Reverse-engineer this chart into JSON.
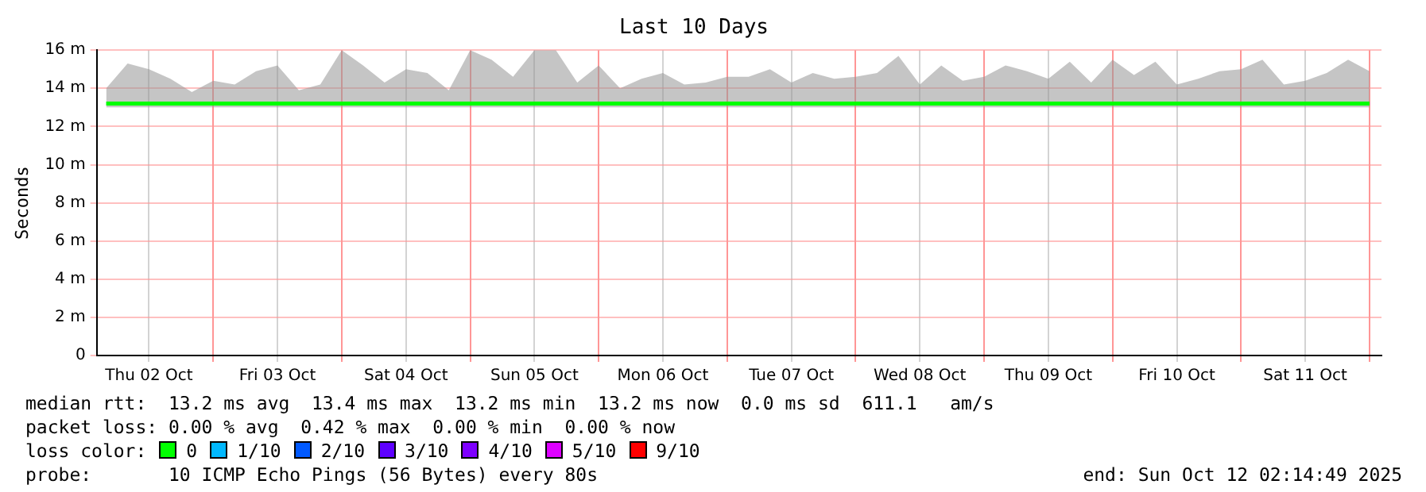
{
  "chart_data": {
    "type": "line",
    "title": "Last 10 Days",
    "ylabel": "Seconds",
    "legend_title": "loss color:",
    "legend": "bottom",
    "grid": true,
    "marker": "none",
    "line_style": "solid",
    "x": [
      "2025-10-02T04:00",
      "2025-10-02T08:00",
      "2025-10-02T12:00",
      "2025-10-02T16:00",
      "2025-10-02T20:00",
      "2025-10-03T00:00",
      "2025-10-03T04:00",
      "2025-10-03T08:00",
      "2025-10-03T12:00",
      "2025-10-03T16:00",
      "2025-10-03T20:00",
      "2025-10-04T00:00",
      "2025-10-04T04:00",
      "2025-10-04T08:00",
      "2025-10-04T12:00",
      "2025-10-04T16:00",
      "2025-10-04T20:00",
      "2025-10-05T00:00",
      "2025-10-05T04:00",
      "2025-10-05T08:00",
      "2025-10-05T12:00",
      "2025-10-05T16:00",
      "2025-10-05T20:00",
      "2025-10-06T00:00",
      "2025-10-06T04:00",
      "2025-10-06T08:00",
      "2025-10-06T12:00",
      "2025-10-06T16:00",
      "2025-10-06T20:00",
      "2025-10-07T00:00",
      "2025-10-07T04:00",
      "2025-10-07T08:00",
      "2025-10-07T12:00",
      "2025-10-07T16:00",
      "2025-10-07T20:00",
      "2025-10-08T00:00",
      "2025-10-08T04:00",
      "2025-10-08T08:00",
      "2025-10-08T12:00",
      "2025-10-08T16:00",
      "2025-10-08T20:00",
      "2025-10-09T00:00",
      "2025-10-09T04:00",
      "2025-10-09T08:00",
      "2025-10-09T12:00",
      "2025-10-09T16:00",
      "2025-10-09T20:00",
      "2025-10-10T00:00",
      "2025-10-10T04:00",
      "2025-10-10T08:00",
      "2025-10-10T12:00",
      "2025-10-10T16:00",
      "2025-10-10T20:00",
      "2025-10-11T00:00",
      "2025-10-11T04:00",
      "2025-10-11T08:00",
      "2025-10-11T12:00",
      "2025-10-11T16:00",
      "2025-10-11T20:00",
      "2025-10-12T00:00"
    ],
    "xlim": [
      "2025-10-02T02:14",
      "2025-10-12T02:14"
    ],
    "xticks": [
      {
        "value": "2025-10-02T12:00",
        "label": "Thu 02 Oct"
      },
      {
        "value": "2025-10-03T00:00",
        "label": null
      },
      {
        "value": "2025-10-03T12:00",
        "label": "Fri 03 Oct"
      },
      {
        "value": "2025-10-04T00:00",
        "label": null
      },
      {
        "value": "2025-10-04T12:00",
        "label": "Sat 04 Oct"
      },
      {
        "value": "2025-10-05T00:00",
        "label": null
      },
      {
        "value": "2025-10-05T12:00",
        "label": "Sun 05 Oct"
      },
      {
        "value": "2025-10-06T00:00",
        "label": null
      },
      {
        "value": "2025-10-06T12:00",
        "label": "Mon 06 Oct"
      },
      {
        "value": "2025-10-07T00:00",
        "label": null
      },
      {
        "value": "2025-10-07T12:00",
        "label": "Tue 07 Oct"
      },
      {
        "value": "2025-10-08T00:00",
        "label": null
      },
      {
        "value": "2025-10-08T12:00",
        "label": "Wed 08 Oct"
      },
      {
        "value": "2025-10-09T00:00",
        "label": null
      },
      {
        "value": "2025-10-09T12:00",
        "label": "Thu 09 Oct"
      },
      {
        "value": "2025-10-10T00:00",
        "label": null
      },
      {
        "value": "2025-10-10T12:00",
        "label": "Fri 10 Oct"
      },
      {
        "value": "2025-10-11T00:00",
        "label": null
      },
      {
        "value": "2025-10-11T12:00",
        "label": "Sat 11 Oct"
      },
      {
        "value": "2025-10-12T00:00",
        "label": null
      }
    ],
    "ylim": [
      0,
      16
    ],
    "yticks": [
      0,
      {
        "value": 2,
        "label": "2 m"
      },
      {
        "value": 4,
        "label": "4 m"
      },
      {
        "value": 6,
        "label": "6 m"
      },
      {
        "value": 8,
        "label": "8 m"
      },
      {
        "value": 10,
        "label": "10 m"
      },
      {
        "value": 12,
        "label": "12 m"
      },
      {
        "value": 14,
        "label": "14 m"
      },
      {
        "value": 16,
        "label": "16 m"
      }
    ],
    "series": [
      {
        "name": "0",
        "color": "#00ff00",
        "values": [
          13.2,
          13.2,
          13.2,
          13.2,
          13.2,
          13.2,
          13.2,
          13.2,
          13.2,
          13.2,
          13.2,
          13.2,
          13.2,
          13.2,
          13.2,
          13.2,
          13.2,
          13.2,
          13.2,
          13.2,
          13.2,
          13.2,
          13.2,
          13.2,
          13.2,
          13.2,
          13.2,
          13.2,
          13.2,
          13.2,
          13.2,
          13.2,
          13.2,
          13.2,
          13.2,
          13.2,
          13.2,
          13.2,
          13.2,
          13.2,
          13.2,
          13.2,
          13.2,
          13.2,
          13.2,
          13.2,
          13.2,
          13.2,
          13.2,
          13.2,
          13.2,
          13.2,
          13.2,
          13.2,
          13.2,
          13.2,
          13.2,
          13.2,
          13.2,
          13.2
        ],
        "lower": [
          13.0,
          13.0,
          13.0,
          13.0,
          13.0,
          13.0,
          13.0,
          13.0,
          13.0,
          13.0,
          13.0,
          13.0,
          13.0,
          13.0,
          13.0,
          13.0,
          13.0,
          13.0,
          13.0,
          13.0,
          13.0,
          13.0,
          13.0,
          13.0,
          13.0,
          13.0,
          13.0,
          13.0,
          13.0,
          13.0,
          13.0,
          13.0,
          13.0,
          13.0,
          13.0,
          13.0,
          13.0,
          13.0,
          13.0,
          13.0,
          13.0,
          13.0,
          13.0,
          13.0,
          13.0,
          13.0,
          13.0,
          13.0,
          13.0,
          13.0,
          13.0,
          13.0,
          13.0,
          13.0,
          13.0,
          13.0,
          13.0,
          13.0,
          13.0,
          13.0
        ],
        "upper": [
          14.0,
          15.3,
          15.0,
          14.5,
          13.8,
          14.4,
          14.2,
          14.9,
          15.2,
          13.9,
          14.2,
          16.0,
          15.2,
          14.3,
          15.0,
          14.8,
          13.9,
          16.0,
          15.5,
          14.6,
          16.0,
          16.0,
          14.3,
          15.2,
          14.0,
          14.5,
          14.8,
          14.2,
          14.3,
          14.6,
          14.6,
          15.0,
          14.3,
          14.8,
          14.5,
          14.6,
          14.8,
          15.7,
          14.2,
          15.2,
          14.4,
          14.6,
          15.2,
          14.9,
          14.5,
          15.4,
          14.3,
          15.5,
          14.7,
          15.4,
          14.2,
          14.5,
          14.9,
          15.0,
          15.5,
          14.2,
          14.4,
          14.8,
          15.5,
          14.9
        ]
      },
      {
        "name": "1/10",
        "color": "#00b8ff",
        "values": [
          null,
          null,
          null,
          null,
          null,
          null,
          null,
          null,
          null,
          null,
          null,
          null,
          null,
          null,
          null,
          null,
          null,
          null,
          null,
          null,
          null,
          null,
          null,
          null,
          null,
          null,
          null,
          null,
          null,
          null,
          null,
          null,
          null,
          null,
          null,
          null,
          null,
          null,
          null,
          null,
          null,
          null,
          null,
          null,
          null,
          null,
          null,
          null,
          null,
          null,
          null,
          null,
          null,
          null,
          null,
          null,
          null,
          null,
          null,
          null
        ]
      },
      {
        "name": "2/10",
        "color": "#0059ff",
        "values": [
          null,
          null,
          null,
          null,
          null,
          null,
          null,
          null,
          null,
          null,
          null,
          null,
          null,
          null,
          null,
          null,
          null,
          null,
          null,
          null,
          null,
          null,
          null,
          null,
          null,
          null,
          null,
          null,
          null,
          null,
          null,
          null,
          null,
          null,
          null,
          null,
          null,
          null,
          null,
          null,
          null,
          null,
          null,
          null,
          null,
          null,
          null,
          null,
          null,
          null,
          null,
          null,
          null,
          null,
          null,
          null,
          null,
          null,
          null,
          null
        ]
      },
      {
        "name": "3/10",
        "color": "#5e00ff",
        "values": [
          null,
          null,
          null,
          null,
          null,
          null,
          null,
          null,
          null,
          null,
          null,
          null,
          null,
          null,
          null,
          null,
          null,
          null,
          null,
          null,
          null,
          null,
          null,
          null,
          null,
          null,
          null,
          null,
          null,
          null,
          null,
          null,
          null,
          null,
          null,
          null,
          null,
          null,
          null,
          null,
          null,
          null,
          null,
          null,
          null,
          null,
          null,
          null,
          null,
          null,
          null,
          null,
          null,
          null,
          null,
          null,
          null,
          null,
          null,
          null
        ]
      },
      {
        "name": "4/10",
        "color": "#7e00ff",
        "values": [
          null,
          null,
          null,
          null,
          null,
          null,
          null,
          null,
          null,
          null,
          null,
          null,
          null,
          null,
          null,
          null,
          null,
          null,
          null,
          null,
          null,
          null,
          null,
          null,
          null,
          null,
          null,
          null,
          null,
          null,
          null,
          null,
          null,
          null,
          null,
          null,
          null,
          null,
          null,
          null,
          null,
          null,
          null,
          null,
          null,
          null,
          null,
          null,
          null,
          null,
          null,
          null,
          null,
          null,
          null,
          null,
          null,
          null,
          null,
          null
        ]
      },
      {
        "name": "5/10",
        "color": "#dd00ff",
        "values": [
          null,
          null,
          null,
          null,
          null,
          null,
          null,
          null,
          null,
          null,
          null,
          null,
          null,
          null,
          null,
          null,
          null,
          null,
          null,
          null,
          null,
          null,
          null,
          null,
          null,
          null,
          null,
          null,
          null,
          null,
          null,
          null,
          null,
          null,
          null,
          null,
          null,
          null,
          null,
          null,
          null,
          null,
          null,
          null,
          null,
          null,
          null,
          null,
          null,
          null,
          null,
          null,
          null,
          null,
          null,
          null,
          null,
          null,
          null,
          null
        ]
      },
      {
        "name": "9/10",
        "color": "#ff0000",
        "values": [
          null,
          null,
          null,
          null,
          null,
          null,
          null,
          null,
          null,
          null,
          null,
          null,
          null,
          null,
          null,
          null,
          null,
          null,
          null,
          null,
          null,
          null,
          null,
          null,
          null,
          null,
          null,
          null,
          null,
          null,
          null,
          null,
          null,
          null,
          null,
          null,
          null,
          null,
          null,
          null,
          null,
          null,
          null,
          null,
          null,
          null,
          null,
          null,
          null,
          null,
          null,
          null,
          null,
          null,
          null,
          null,
          null,
          null,
          null,
          null
        ]
      }
    ],
    "annotations": [
      "median rtt:  13.2 ms avg  13.4 ms max  13.2 ms min  13.2 ms now  0.0 ms sd  611.1   am/s",
      "packet loss: 0.00 % avg  0.42 % max  0.00 % min  0.00 % now",
      "probe:       10 ICMP Echo Pings (56 Bytes) every 80s",
      "end: Sun Oct 12 02:14:49 2025"
    ]
  }
}
